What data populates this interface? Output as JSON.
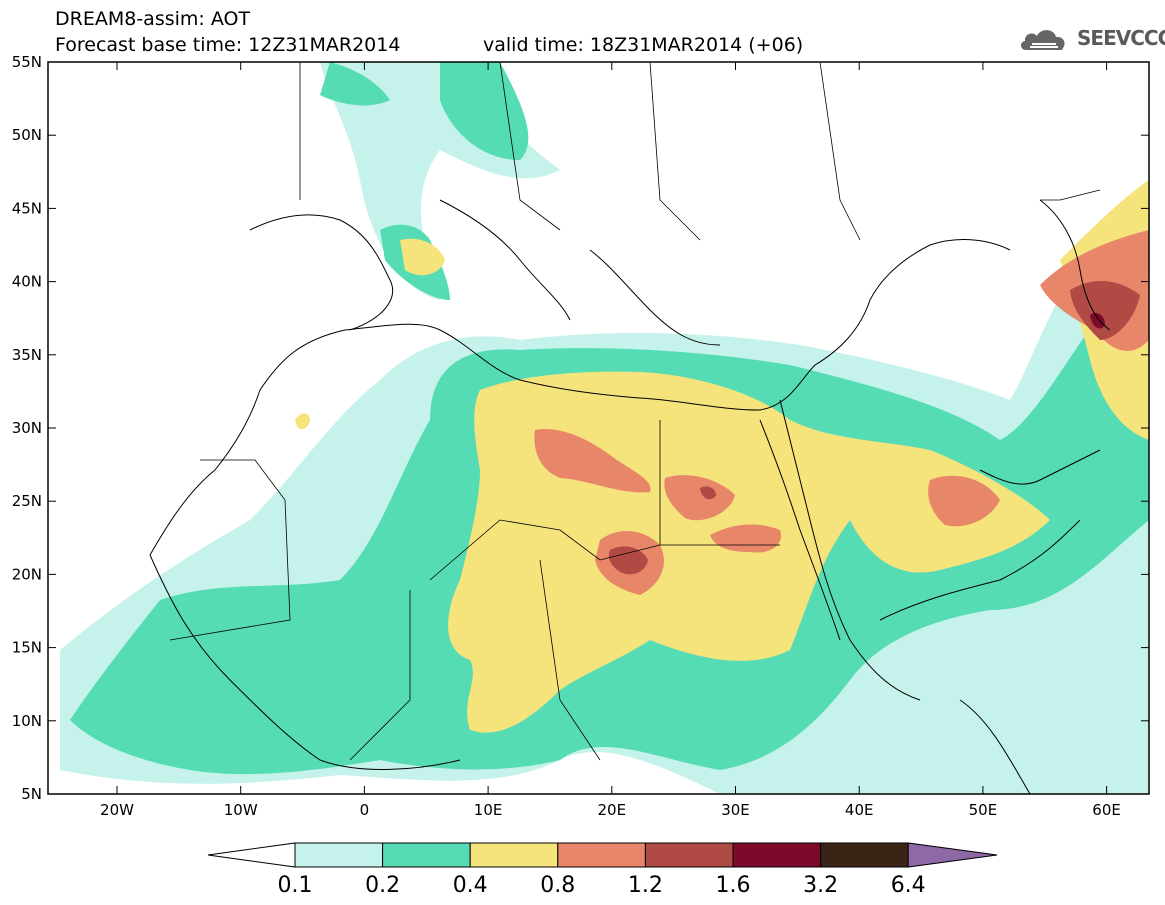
{
  "header": {
    "title": "DREAM8-assim: AOT",
    "base_time": "Forecast base time: 12Z31MAR2014",
    "valid_time": "valid time: 18Z31MAR2014 (+06)",
    "logo_text": "SEEVCCC"
  },
  "map": {
    "lon_ticks": [
      "20W",
      "10W",
      "0",
      "10E",
      "20E",
      "30E",
      "40E",
      "50E",
      "60E"
    ],
    "lat_ticks": [
      "55N",
      "50N",
      "45N",
      "40N",
      "35N",
      "30N",
      "25N",
      "20N",
      "15N",
      "10N",
      "5N"
    ]
  },
  "colorbar": {
    "labels": [
      "0.1",
      "0.2",
      "0.4",
      "0.8",
      "1.2",
      "1.6",
      "3.2",
      "6.4"
    ],
    "colors": [
      "#c5f2ea",
      "#56dcb4",
      "#f5e37c",
      "#e8866a",
      "#b04a45",
      "#7d0a2a",
      "#3a2416",
      "#8e69a6"
    ]
  }
}
